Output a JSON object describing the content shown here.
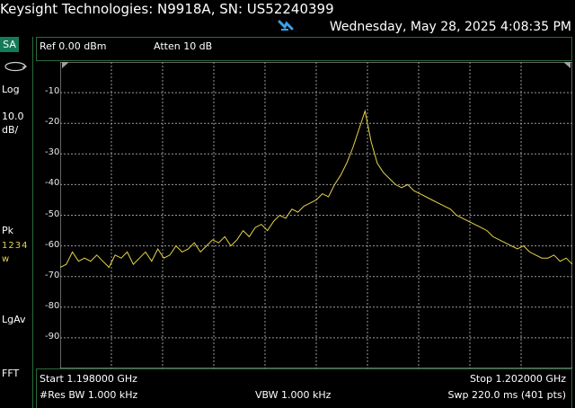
{
  "header": {
    "title": "Keysight Technologies: N9918A, SN: US52240399",
    "datetime": "Wednesday, May 28, 2025 4:08:35 PM"
  },
  "mode": "SA",
  "side_panel": {
    "scale_type": "Log",
    "scale_value": "10.0",
    "scale_unit": "dB/",
    "detector": "Pk",
    "trace_numbers": "1234",
    "trace_mode": "w",
    "averaging": "LgAv",
    "sweep_type": "FFT"
  },
  "settings": {
    "ref_level": "Ref 0.00 dBm",
    "attenuation": "Atten 10 dB"
  },
  "footer": {
    "start": "Start 1.198000 GHz",
    "stop": "Stop 1.202000 GHz",
    "res_bw": "#Res BW 1.000 kHz",
    "vbw": "VBW 1.000 kHz",
    "sweep": "Swp 220.0 ms (401 pts)"
  },
  "colors": {
    "trace": "#e6d34a",
    "grid": "#9a9a9a",
    "border": "#2a6b3a",
    "badge": "#157a57",
    "icon": "#3aa0e8"
  },
  "chart_data": {
    "type": "line",
    "ylim": [
      -100,
      0
    ],
    "x_range_ghz": [
      1.198,
      1.202
    ],
    "y_ticks": [
      "-10",
      "-20",
      "-30",
      "-40",
      "-50",
      "-60",
      "-70",
      "-80",
      "-90"
    ],
    "grid": true,
    "series": [
      {
        "points": [
          -67,
          -66,
          -62,
          -65,
          -64,
          -65,
          -63,
          -65,
          -67,
          -63,
          -64,
          -62,
          -66,
          -64,
          -62,
          -65,
          -61,
          -64,
          -63,
          -60,
          -62,
          -61,
          -59,
          -62,
          -60,
          -58,
          -59,
          -57,
          -60,
          -58,
          -55,
          -57,
          -54,
          -53,
          -55,
          -52,
          -50,
          -51,
          -48,
          -49,
          -47,
          -46,
          -45,
          -43,
          -44,
          -40,
          -37,
          -33,
          -28,
          -22,
          -16,
          -26,
          -33,
          -36,
          -38,
          -40,
          -41,
          -40,
          -42,
          -43,
          -44,
          -45,
          -46,
          -47,
          -48,
          -50,
          -51,
          -52,
          -53,
          -54,
          -55,
          -57,
          -58,
          -59,
          -60,
          -61,
          -60,
          -62,
          -63,
          -64,
          -64,
          -63,
          -65,
          -64,
          -66
        ]
      }
    ]
  }
}
